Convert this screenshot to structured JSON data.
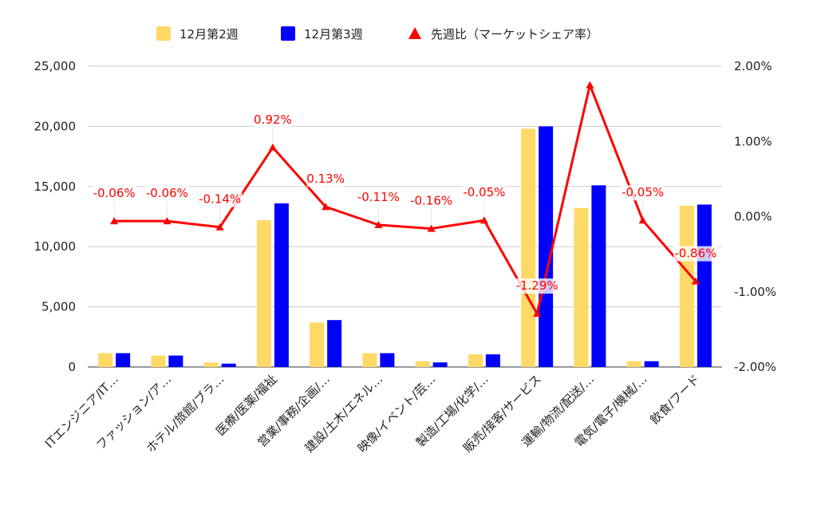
{
  "chart_data": {
    "type": "bar",
    "categories": [
      "ITエンジニア/IT…",
      "ファッション/ア…",
      "ホテル/旅館/ブラ…",
      "医療/医薬/福祉",
      "営業/事務/企画/…",
      "建設/土木/エネル…",
      "映像/イベント/芸…",
      "製造/工場/化学/…",
      "販売/接客/サービス",
      "運輸/物流/配送/…",
      "電気/電子/機械/…",
      "飲食/フード"
    ],
    "series": [
      {
        "name": "12月第2週",
        "type": "bar",
        "axis": "left",
        "color": "#FFD966",
        "values": [
          1150,
          950,
          380,
          12200,
          3700,
          1150,
          480,
          1050,
          19800,
          13200,
          480,
          13400
        ]
      },
      {
        "name": "12月第3週",
        "type": "bar",
        "axis": "left",
        "color": "#0000FF",
        "values": [
          1150,
          950,
          280,
          13600,
          3900,
          1150,
          380,
          1050,
          20000,
          15100,
          480,
          13500
        ]
      },
      {
        "name": "先週比（マーケットシェア率）",
        "type": "line",
        "axis": "right",
        "color": "#FF0000",
        "values": [
          -0.06,
          -0.06,
          -0.14,
          0.92,
          0.13,
          -0.11,
          -0.16,
          -0.05,
          -1.29,
          1.75,
          -0.05,
          -0.86
        ],
        "labels": [
          "-0.06%",
          "-0.06%",
          "-0.14%",
          "0.92%",
          "0.13%",
          "-0.11%",
          "-0.16%",
          "-0.05%",
          "-1.29%",
          "",
          "-0.05%",
          "-0.86%"
        ]
      }
    ],
    "y_left": {
      "ylim": [
        0,
        25000
      ],
      "ticks": [
        "0",
        "5,000",
        "10,000",
        "15,000",
        "20,000",
        "25,000"
      ]
    },
    "y_right": {
      "ylim": [
        -2,
        2
      ],
      "ticks": [
        "-2.00%",
        "-1.00%",
        "0.00%",
        "1.00%",
        "2.00%"
      ]
    },
    "legend_position": "top-center",
    "grid": true
  }
}
